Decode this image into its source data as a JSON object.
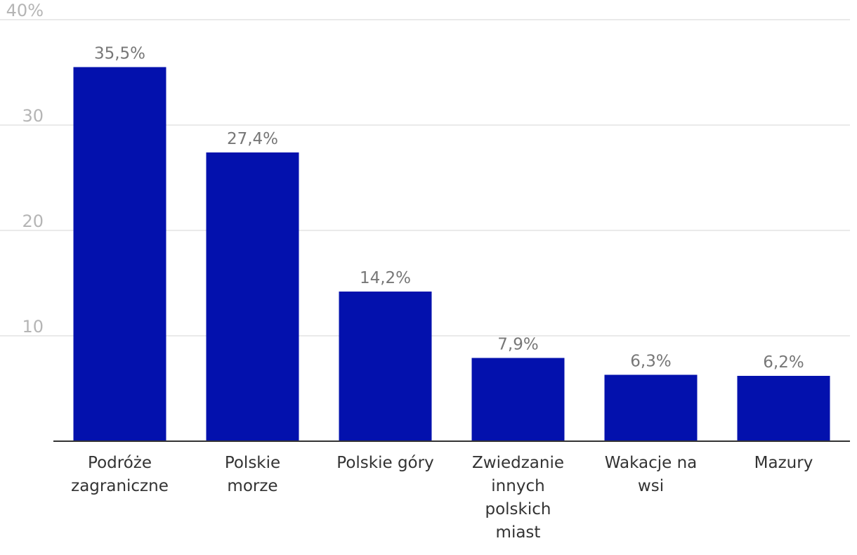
{
  "chart_data": {
    "type": "bar",
    "categories": [
      [
        "Podróże",
        "zagraniczne"
      ],
      [
        "Polskie",
        "morze"
      ],
      [
        "Polskie góry"
      ],
      [
        "Zwiedzanie",
        "innych",
        "polskich",
        "miast"
      ],
      [
        "Wakacje na",
        "wsi"
      ],
      [
        "Mazury"
      ]
    ],
    "values": [
      35.5,
      27.4,
      14.2,
      7.9,
      6.3,
      6.2
    ],
    "value_labels": [
      "35,5%",
      "27,4%",
      "14,2%",
      "7,9%",
      "6,3%",
      "6,2%"
    ],
    "y_ticks": [
      10,
      20,
      30,
      40
    ],
    "y_tick_labels": [
      "10",
      "20",
      "30",
      "40%"
    ],
    "ylim": [
      0,
      40
    ],
    "bar_color": "#0311ad",
    "grid": true,
    "title": "",
    "xlabel": "",
    "ylabel": ""
  }
}
